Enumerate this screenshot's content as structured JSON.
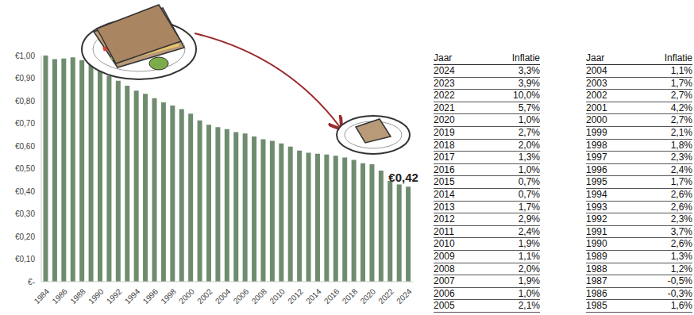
{
  "chart_data": {
    "type": "bar",
    "categories": [
      "1984",
      null,
      "1986",
      null,
      "1988",
      null,
      "1990",
      null,
      "1992",
      null,
      "1994",
      null,
      "1996",
      null,
      "1998",
      null,
      "2000",
      null,
      "2002",
      null,
      "2004",
      null,
      "2006",
      null,
      "2008",
      null,
      "2010",
      null,
      "2012",
      null,
      "2014",
      null,
      "2016",
      null,
      "2018",
      null,
      "2020",
      null,
      "2022",
      null,
      "2024"
    ],
    "values": [
      1.0,
      0.984,
      0.987,
      0.992,
      0.98,
      0.968,
      0.943,
      0.91,
      0.889,
      0.867,
      0.845,
      0.831,
      0.811,
      0.793,
      0.779,
      0.763,
      0.743,
      0.713,
      0.694,
      0.683,
      0.675,
      0.661,
      0.655,
      0.642,
      0.63,
      0.623,
      0.611,
      0.597,
      0.58,
      0.57,
      0.566,
      0.562,
      0.557,
      0.549,
      0.539,
      0.524,
      0.519,
      0.491,
      0.446,
      0.43,
      0.42
    ],
    "color": "#6f8c6f",
    "ylim": [
      0,
      1
    ],
    "yticks": [
      {
        "value": 0,
        "label": "€-"
      },
      {
        "value": 0.1,
        "label": "€0,10"
      },
      {
        "value": 0.2,
        "label": "€0,20"
      },
      {
        "value": 0.3,
        "label": "€0,30"
      },
      {
        "value": 0.4,
        "label": "€0,40"
      },
      {
        "value": 0.5,
        "label": "€0,50"
      },
      {
        "value": 0.6,
        "label": "€0,60"
      },
      {
        "value": 0.7,
        "label": "€0,70"
      },
      {
        "value": 0.8,
        "label": "€0,80"
      },
      {
        "value": 0.9,
        "label": "€0,90"
      },
      {
        "value": 1,
        "label": "€1,00"
      }
    ],
    "grid": false,
    "annotations": [
      {
        "text": "€0,42",
        "position": 40
      }
    ]
  },
  "tables": [
    {
      "header": [
        "Jaar",
        "Inflatie"
      ],
      "rows": [
        [
          "2024",
          "3,3%"
        ],
        [
          "2023",
          "3,9%"
        ],
        [
          "2022",
          "10,0%"
        ],
        [
          "2021",
          "5,7%"
        ],
        [
          "2020",
          "1,0%"
        ],
        [
          "2019",
          "2,7%"
        ],
        [
          "2018",
          "2,0%"
        ],
        [
          "2017",
          "1,3%"
        ],
        [
          "2016",
          "1,0%"
        ],
        [
          "2015",
          "0,7%"
        ],
        [
          "2014",
          "0,7%"
        ],
        [
          "2013",
          "1,7%"
        ],
        [
          "2012",
          "2,9%"
        ],
        [
          "2011",
          "2,4%"
        ],
        [
          "2010",
          "1,9%"
        ],
        [
          "2009",
          "1,1%"
        ],
        [
          "2008",
          "2,0%"
        ],
        [
          "2007",
          "1,9%"
        ],
        [
          "2006",
          "1,0%"
        ],
        [
          "2005",
          "2,1%"
        ]
      ]
    },
    {
      "header": [
        "Jaar",
        "Inflatie"
      ],
      "rows": [
        [
          "2004",
          "1,1%"
        ],
        [
          "2003",
          "1,7%"
        ],
        [
          "2002",
          "2,7%"
        ],
        [
          "2001",
          "4,2%"
        ],
        [
          "2000",
          "2,7%"
        ],
        [
          "1999",
          "2,1%"
        ],
        [
          "1998",
          "1,8%"
        ],
        [
          "1997",
          "2,3%"
        ],
        [
          "1996",
          "2,4%"
        ],
        [
          "1995",
          "1,7%"
        ],
        [
          "1994",
          "2,6%"
        ],
        [
          "1993",
          "2,6%"
        ],
        [
          "1992",
          "2,3%"
        ],
        [
          "1991",
          "3,7%"
        ],
        [
          "1990",
          "2,6%"
        ],
        [
          "1989",
          "1,3%"
        ],
        [
          "1988",
          "1,2%"
        ],
        [
          "1987",
          "-0,5%"
        ],
        [
          "1986",
          "-0,3%"
        ],
        [
          "1985",
          "1,6%"
        ]
      ]
    }
  ]
}
